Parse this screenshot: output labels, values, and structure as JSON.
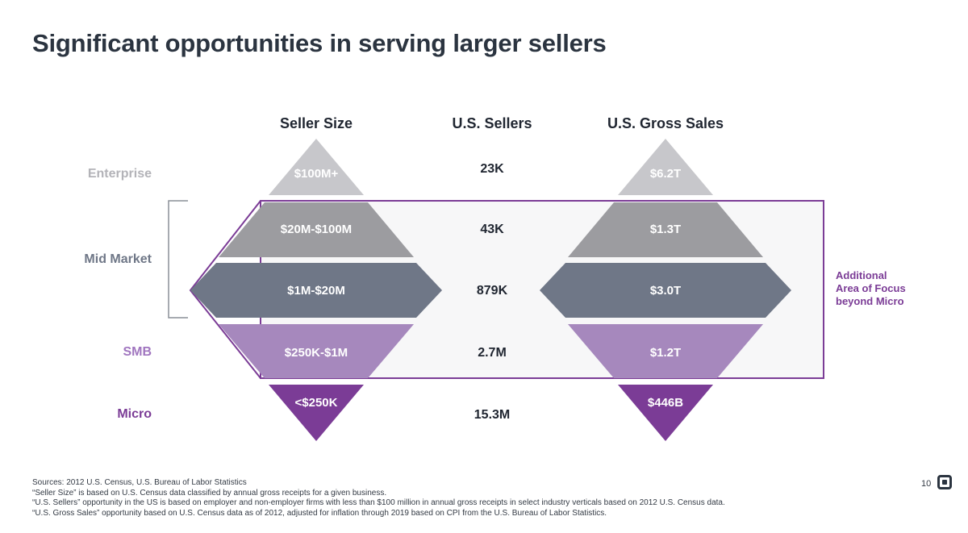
{
  "title": "Significant opportunities in serving larger sellers",
  "headers": {
    "seller_size": "Seller Size",
    "us_sellers": "U.S. Sellers",
    "us_gross_sales": "U.S. Gross Sales"
  },
  "rows": [
    {
      "segment": "Enterprise",
      "seller_size": "$100M+",
      "us_sellers": "23K",
      "gross_sales": "$6.2T"
    },
    {
      "segment": "",
      "seller_size": "$20M-$100M",
      "us_sellers": "43K",
      "gross_sales": "$1.3T"
    },
    {
      "segment": "Mid Market",
      "seller_size": "$1M-$20M",
      "us_sellers": "879K",
      "gross_sales": "$3.0T"
    },
    {
      "segment": "SMB",
      "seller_size": "$250K-$1M",
      "us_sellers": "2.7M",
      "gross_sales": "$1.2T"
    },
    {
      "segment": "Micro",
      "seller_size": "<$250K",
      "us_sellers": "15.3M",
      "gross_sales": "$446B"
    }
  ],
  "focus_note": [
    "Additional",
    "Area of Focus",
    "beyond Micro"
  ],
  "footer": [
    "Sources: 2012 U.S. Census, U.S. Bureau of Labor Statistics",
    "“Seller Size” is based on U.S. Census data classified by annual gross receipts for a given business.",
    "“U.S. Sellers” opportunity in the US is based on employer and non-employer firms with less than $100 million in annual gross receipts in select industry verticals based on 2012 U.S. Census data.",
    "“U.S. Gross Sales” opportunity based on U.S. Census data as of 2012, adjusted for inflation through 2019 based on CPI from the U.S. Bureau of Labor Statistics."
  ],
  "page_number": "10",
  "colors": {
    "title": "#2b3440",
    "enterprise": "#c7c7cb",
    "upper_mid": "#9c9ca0",
    "lower_mid": "#6f7787",
    "smb": "#a688bd",
    "micro": "#7b3c96",
    "focus_box": "#7b3c96"
  }
}
